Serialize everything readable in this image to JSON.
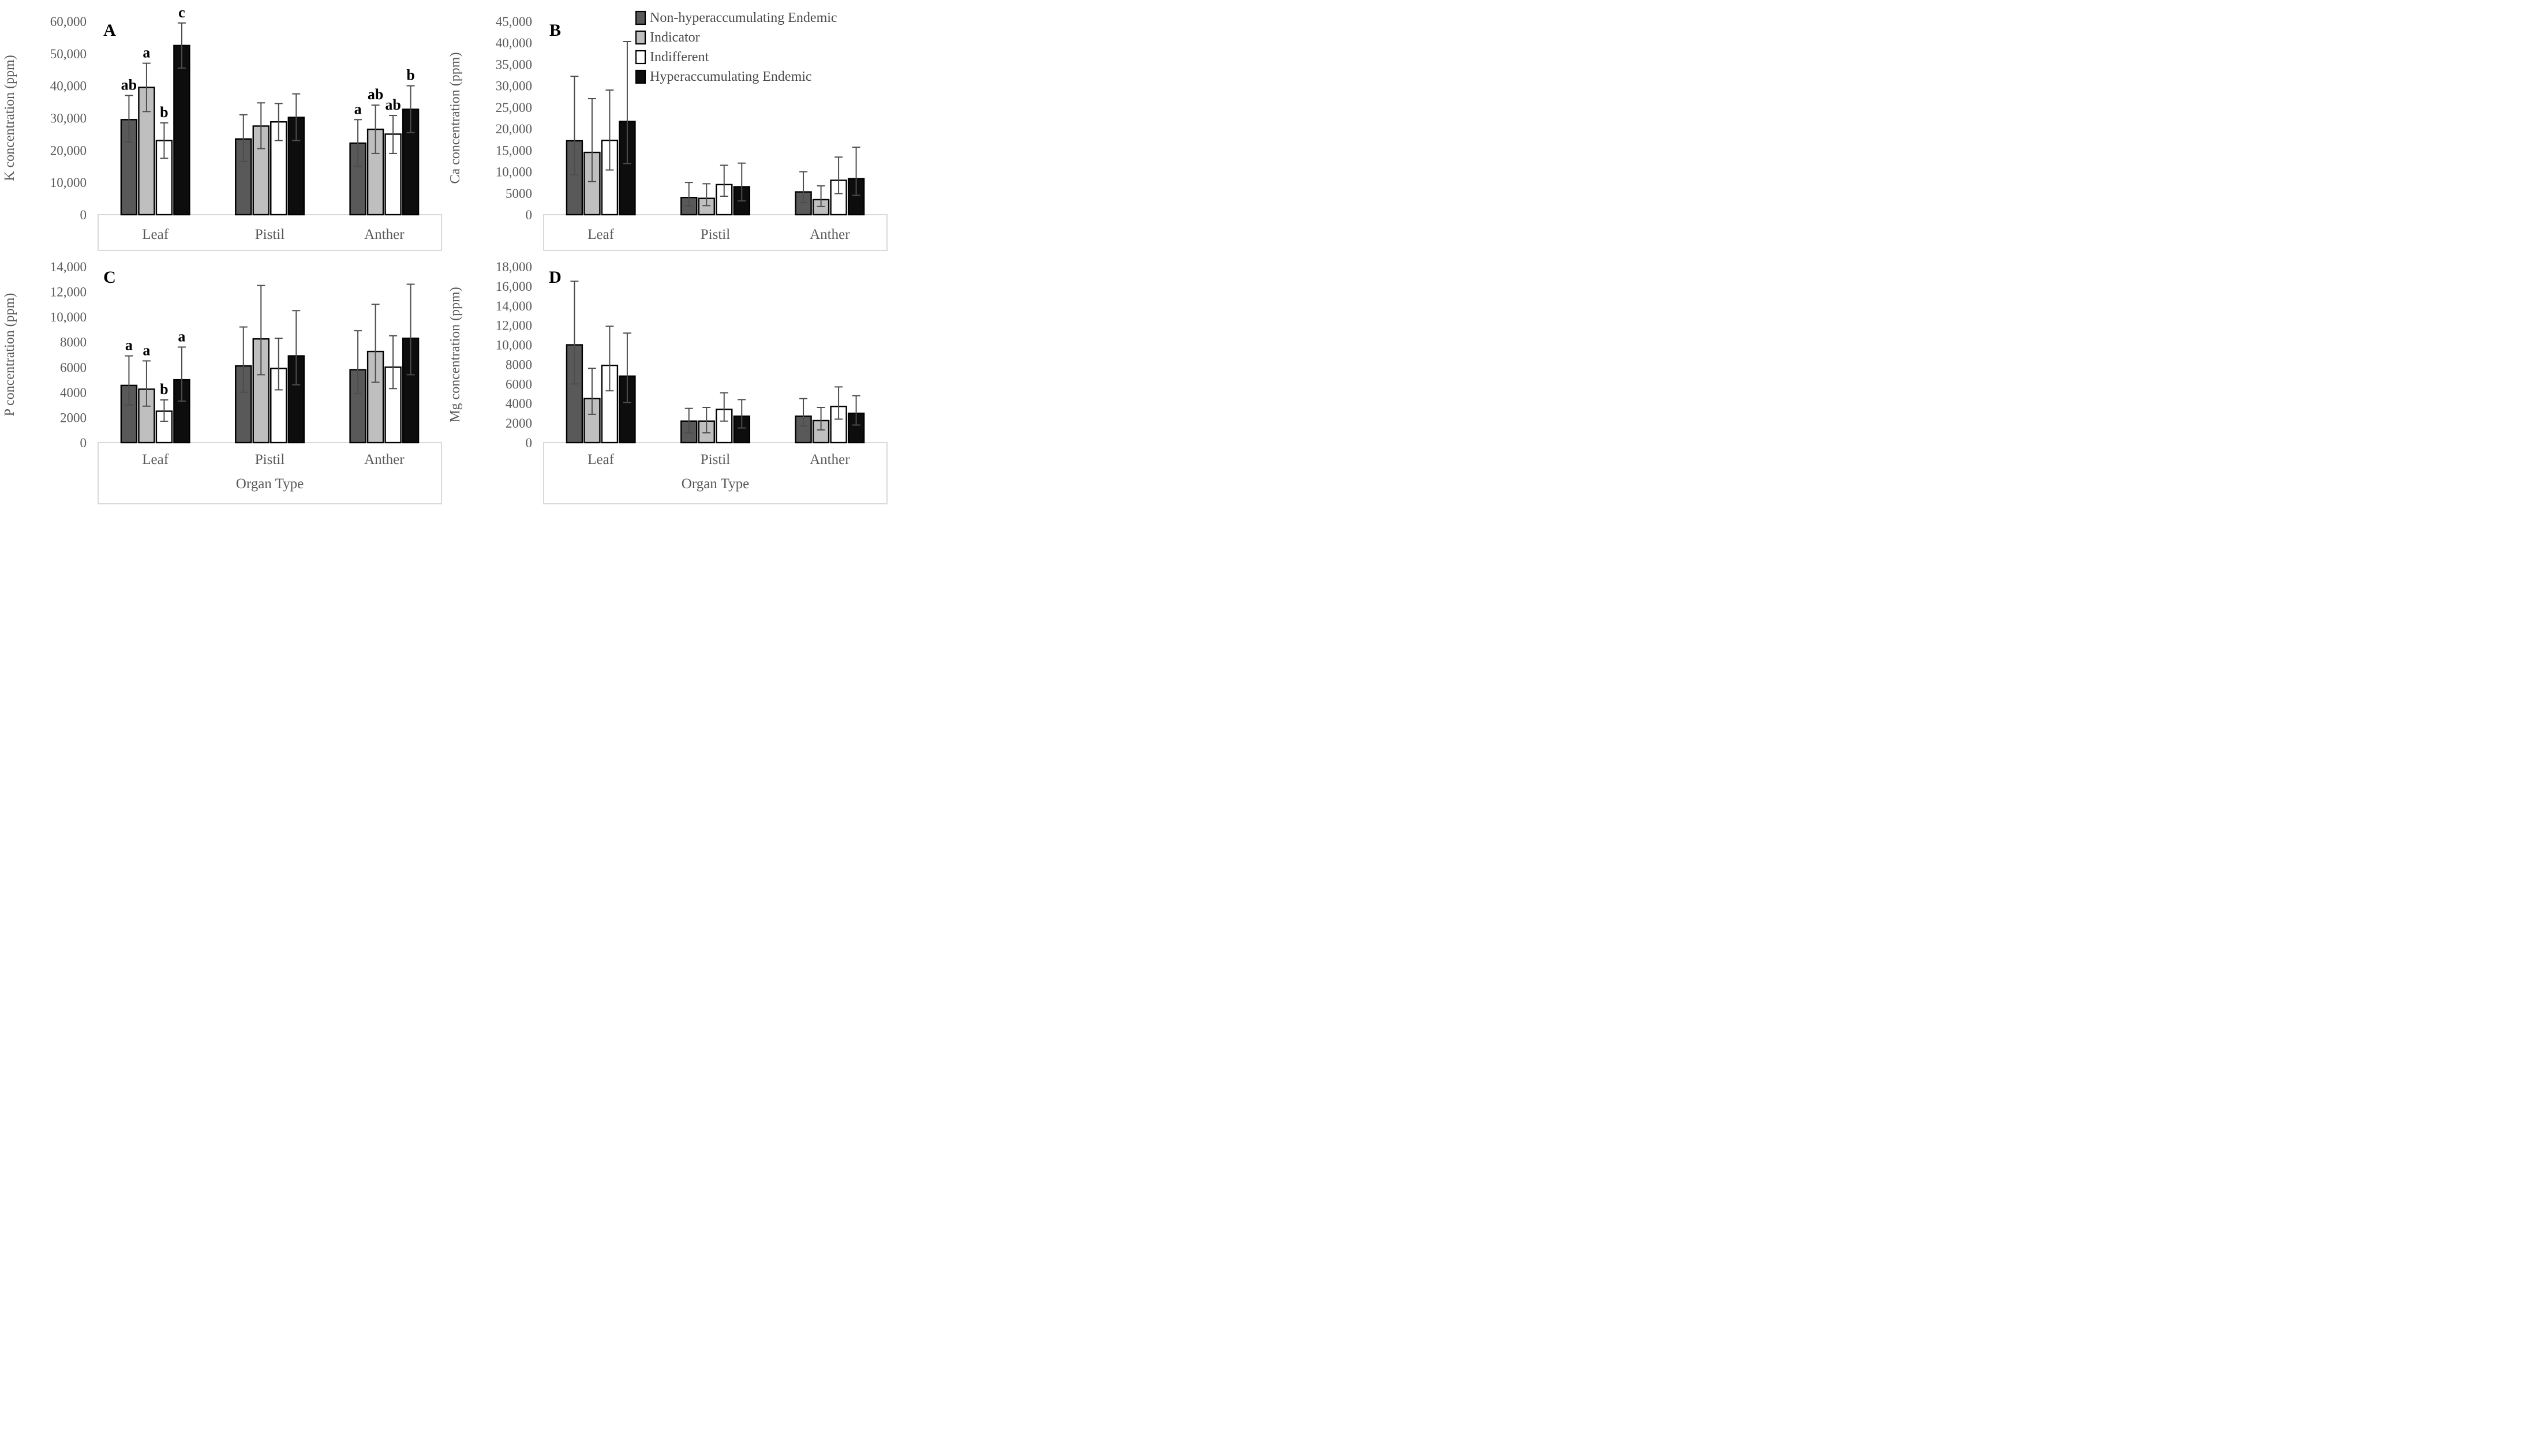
{
  "figure": {
    "background": "#FFFFFF"
  },
  "chart_data": {
    "type": "bar",
    "orientation": "grouped-vertical-with-error-bars",
    "grid": "off",
    "legend_position": "top-right-of-panel-B",
    "categories": [
      "Leaf",
      "Pistil",
      "Anther"
    ],
    "series_legend": [
      {
        "label": "Non-hyperaccumulating Endemic",
        "color": "#595959"
      },
      {
        "label": "Indicator",
        "color": "#BFBFBF"
      },
      {
        "label": "Indifferent",
        "color": "#FFFFFF"
      },
      {
        "label": "Hyperaccumulating Endemic",
        "color": "#0D0D0D"
      }
    ],
    "colors": {
      "error_bar": "#4D4D4D",
      "axis_text": "#595959",
      "box_line": "#D9D9D9",
      "bar_stroke": "#000000",
      "panel_letter": "#000000",
      "significance_letter": "#000000"
    },
    "x_axis_title_bottom_row": "Organ Type",
    "panels": [
      {
        "panel_label": "A",
        "ylabel": "K concentration (ppm)",
        "ymax": 60000,
        "ylim": [
          0,
          60000
        ],
        "ytick_labels": [
          "0",
          "10,000",
          "20,000",
          "30,000",
          "40,000",
          "50,000",
          "60,000"
        ],
        "xlabel": null,
        "groups": [
          {
            "name": "Leaf",
            "bars": [
              {
                "v": 29500,
                "up": 7500,
                "dn": 7000,
                "l": "ab"
              },
              {
                "v": 39500,
                "up": 7500,
                "dn": 7500,
                "l": "a"
              },
              {
                "v": 23000,
                "up": 5500,
                "dn": 5500,
                "l": "b"
              },
              {
                "v": 52500,
                "up": 7000,
                "dn": 7000,
                "l": "c"
              }
            ]
          },
          {
            "name": "Pistil",
            "bars": [
              {
                "v": 23500,
                "up": 7500,
                "dn": 7000,
                "l": null
              },
              {
                "v": 27500,
                "up": 7200,
                "dn": 7000,
                "l": null
              },
              {
                "v": 28800,
                "up": 5700,
                "dn": 5800,
                "l": null
              },
              {
                "v": 30200,
                "up": 7300,
                "dn": 7200,
                "l": null
              }
            ]
          },
          {
            "name": "Anther",
            "bars": [
              {
                "v": 22200,
                "up": 7300,
                "dn": 7200,
                "l": "a"
              },
              {
                "v": 26500,
                "up": 7500,
                "dn": 7500,
                "l": "ab"
              },
              {
                "v": 25000,
                "up": 5800,
                "dn": 6000,
                "l": "ab"
              },
              {
                "v": 32700,
                "up": 7300,
                "dn": 7200,
                "l": "b"
              }
            ]
          }
        ]
      },
      {
        "panel_label": "B",
        "ylabel": "Ca concentration (ppm)",
        "ymax": 45000,
        "ylim": [
          0,
          45000
        ],
        "ytick_labels": [
          "0",
          "5000",
          "10,000",
          "15,000",
          "20,000",
          "25,000",
          "30,000",
          "35,000",
          "40,000",
          "45,000"
        ],
        "xlabel": null,
        "show_legend": true,
        "groups": [
          {
            "name": "Leaf",
            "bars": [
              {
                "v": 17200,
                "up": 15000,
                "dn": 7900,
                "l": null
              },
              {
                "v": 14500,
                "up": 12500,
                "dn": 6800,
                "l": null
              },
              {
                "v": 17300,
                "up": 11700,
                "dn": 6900,
                "l": null
              },
              {
                "v": 21700,
                "up": 18600,
                "dn": 9800,
                "l": null
              }
            ]
          },
          {
            "name": "Pistil",
            "bars": [
              {
                "v": 4000,
                "up": 3500,
                "dn": 2000,
                "l": null
              },
              {
                "v": 3800,
                "up": 3400,
                "dn": 1700,
                "l": null
              },
              {
                "v": 7000,
                "up": 4500,
                "dn": 2700,
                "l": null
              },
              {
                "v": 6500,
                "up": 5500,
                "dn": 3300,
                "l": null
              }
            ]
          },
          {
            "name": "Anther",
            "bars": [
              {
                "v": 5300,
                "up": 4700,
                "dn": 2500,
                "l": null
              },
              {
                "v": 3500,
                "up": 3200,
                "dn": 1600,
                "l": null
              },
              {
                "v": 8000,
                "up": 5400,
                "dn": 3100,
                "l": null
              },
              {
                "v": 8400,
                "up": 7300,
                "dn": 3900,
                "l": null
              }
            ]
          }
        ]
      },
      {
        "panel_label": "C",
        "ylabel": "P concentration (ppm)",
        "ymax": 14000,
        "ylim": [
          0,
          14000
        ],
        "ytick_labels": [
          "0",
          "2000",
          "4000",
          "6000",
          "8000",
          "10,000",
          "12,000",
          "14,000"
        ],
        "xlabel": "Organ Type",
        "groups": [
          {
            "name": "Leaf",
            "bars": [
              {
                "v": 4550,
                "up": 2350,
                "dn": 1550,
                "l": "a"
              },
              {
                "v": 4250,
                "up": 2250,
                "dn": 1350,
                "l": "a"
              },
              {
                "v": 2500,
                "up": 900,
                "dn": 800,
                "l": "b"
              },
              {
                "v": 5000,
                "up": 2600,
                "dn": 1700,
                "l": "a"
              }
            ]
          },
          {
            "name": "Pistil",
            "bars": [
              {
                "v": 6100,
                "up": 3100,
                "dn": 2100,
                "l": null
              },
              {
                "v": 8250,
                "up": 4250,
                "dn": 2850,
                "l": null
              },
              {
                "v": 5900,
                "up": 2400,
                "dn": 1700,
                "l": null
              },
              {
                "v": 6900,
                "up": 3600,
                "dn": 2300,
                "l": null
              }
            ]
          },
          {
            "name": "Anther",
            "bars": [
              {
                "v": 5800,
                "up": 3100,
                "dn": 1900,
                "l": null
              },
              {
                "v": 7250,
                "up": 3750,
                "dn": 2450,
                "l": null
              },
              {
                "v": 6000,
                "up": 2500,
                "dn": 1700,
                "l": null
              },
              {
                "v": 8300,
                "up": 4300,
                "dn": 2900,
                "l": null
              }
            ]
          }
        ]
      },
      {
        "panel_label": "D",
        "ylabel": "Mg concentration (ppm)",
        "ymax": 18000,
        "ylim": [
          0,
          18000
        ],
        "ytick_labels": [
          "0",
          "2000",
          "4000",
          "6000",
          "8000",
          "10,000",
          "12,000",
          "14,000",
          "16,000",
          "18,000"
        ],
        "xlabel": "Organ Type",
        "groups": [
          {
            "name": "Leaf",
            "bars": [
              {
                "v": 10000,
                "up": 6500,
                "dn": 4000,
                "l": null
              },
              {
                "v": 4500,
                "up": 3100,
                "dn": 1600,
                "l": null
              },
              {
                "v": 7900,
                "up": 4000,
                "dn": 2600,
                "l": null
              },
              {
                "v": 6800,
                "up": 4400,
                "dn": 2700,
                "l": null
              }
            ]
          },
          {
            "name": "Pistil",
            "bars": [
              {
                "v": 2200,
                "up": 1300,
                "dn": 1200,
                "l": null
              },
              {
                "v": 2200,
                "up": 1400,
                "dn": 1200,
                "l": null
              },
              {
                "v": 3400,
                "up": 1700,
                "dn": 1200,
                "l": null
              },
              {
                "v": 2700,
                "up": 1700,
                "dn": 1200,
                "l": null
              }
            ]
          },
          {
            "name": "Anther",
            "bars": [
              {
                "v": 2700,
                "up": 1800,
                "dn": 1000,
                "l": null
              },
              {
                "v": 2250,
                "up": 1350,
                "dn": 950,
                "l": null
              },
              {
                "v": 3700,
                "up": 2000,
                "dn": 1300,
                "l": null
              },
              {
                "v": 3000,
                "up": 1800,
                "dn": 1200,
                "l": null
              }
            ]
          }
        ]
      }
    ]
  }
}
